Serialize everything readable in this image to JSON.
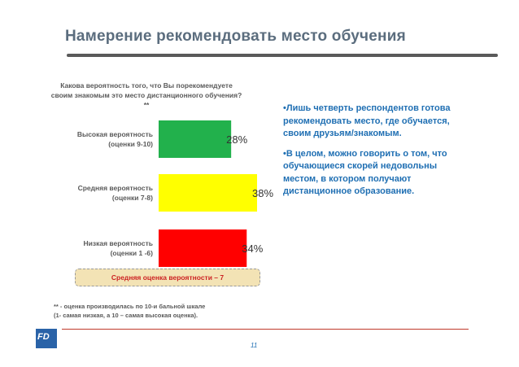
{
  "slide": {
    "title": "Намерение рекомендовать место обучения",
    "question": "Какова вероятность того, что Вы порекомендуете своим знакомым это место дистанционного обучения? **",
    "bullets": [
      "•Лишь четверть респондентов готова рекомендовать место, где обучается, своим друзьям/знакомым.",
      "•В целом, можно говорить о том, что обучающиеся скорей недовольны местом, в котором получают дистанционное образование."
    ],
    "average_label": "Средняя оценка вероятности – 7",
    "footnote_lines": [
      "** - оценка производилась по 10-и бальной шкале",
      "(1- самая низкая, а 10 – самая высокая оценка)."
    ],
    "page_number": "11",
    "logo_text": "FD"
  },
  "colors": {
    "title": "#5b6d7e",
    "bullet_text": "#1f6fb3",
    "average_text": "#cc2222",
    "average_box": "#f3e3b5",
    "footer_rule": "#c0392b"
  },
  "chart_data": {
    "type": "bar",
    "orientation": "horizontal",
    "categories": [
      [
        "Высокая вероятность",
        "(оценки 9-10)"
      ],
      [
        "Средняя вероятность",
        "(оценки 7-8)"
      ],
      [
        "Низкая вероятность",
        "(оценки 1 -6)"
      ]
    ],
    "values": [
      28,
      38,
      34
    ],
    "value_labels": [
      "28%",
      "38%",
      "34%"
    ],
    "bar_colors": [
      "#22b14c",
      "#ffff00",
      "#ff0000"
    ],
    "unit": "%",
    "xlim": [
      0,
      38
    ],
    "grid": false,
    "legend": "none"
  }
}
